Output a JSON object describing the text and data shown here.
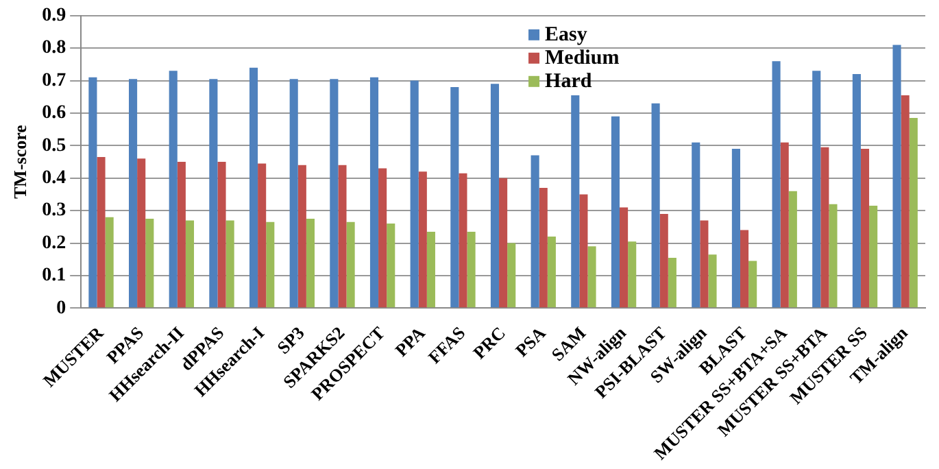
{
  "chart_data": {
    "type": "bar",
    "ylabel": "TM-score",
    "categories": [
      "MUSTER",
      "PPAS",
      "HHsearch-II",
      "dPPAS",
      "HHsearch-I",
      "SP3",
      "SPARKS2",
      "PROSPECT",
      "PPA",
      "FFAS",
      "PRC",
      "PSA",
      "SAM",
      "NW-align",
      "PSI-BLAST",
      "SW-align",
      "BLAST",
      "MUSTER SS+BTA+SA",
      "MUSTER SS+BTA",
      "MUSTER SS",
      "TM-align"
    ],
    "series": [
      {
        "name": "Easy",
        "color": "#4f81bd",
        "values": [
          0.71,
          0.705,
          0.73,
          0.705,
          0.74,
          0.705,
          0.705,
          0.71,
          0.7,
          0.68,
          0.69,
          0.47,
          0.655,
          0.59,
          0.63,
          0.51,
          0.49,
          0.76,
          0.73,
          0.72,
          0.81
        ]
      },
      {
        "name": "Medium",
        "color": "#c0504d",
        "values": [
          0.465,
          0.46,
          0.45,
          0.45,
          0.445,
          0.44,
          0.44,
          0.43,
          0.42,
          0.415,
          0.4,
          0.37,
          0.35,
          0.31,
          0.29,
          0.27,
          0.24,
          0.51,
          0.495,
          0.49,
          0.655
        ]
      },
      {
        "name": "Hard",
        "color": "#9bbb59",
        "values": [
          0.28,
          0.275,
          0.27,
          0.27,
          0.265,
          0.275,
          0.265,
          0.26,
          0.235,
          0.235,
          0.2,
          0.22,
          0.19,
          0.205,
          0.155,
          0.165,
          0.145,
          0.36,
          0.32,
          0.315,
          0.585
        ]
      }
    ],
    "ylim": [
      0,
      0.9
    ],
    "yticks": [
      0,
      0.1,
      0.2,
      0.3,
      0.4,
      0.5,
      0.6,
      0.7,
      0.8,
      0.9
    ],
    "grid": "y",
    "legend": "top"
  }
}
